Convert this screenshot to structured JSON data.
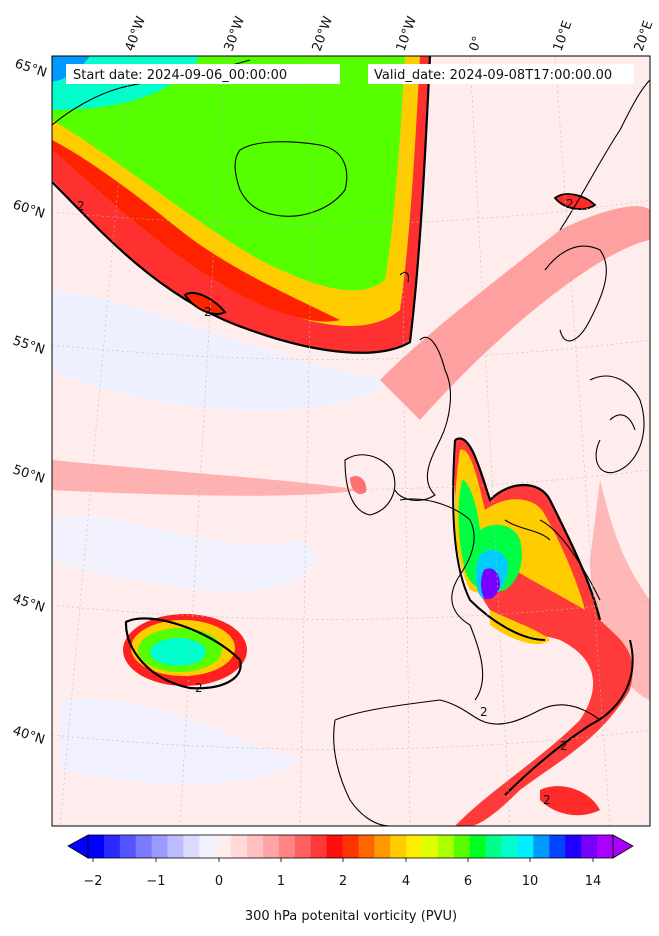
{
  "header": {
    "start_label": "Start date: 2024-09-06_00:00:00",
    "valid_label": "Valid_date: 2024-09-08T17:00:00.00"
  },
  "longitude_labels": [
    "40°W",
    "30°W",
    "20°W",
    "10°W",
    "0°",
    "10°E",
    "20°E"
  ],
  "latitude_labels": [
    "65°N",
    "60°N",
    "55°N",
    "50°N",
    "45°N",
    "40°N"
  ],
  "contour_label": "2",
  "colorbar": {
    "ticks": [
      "−2",
      "−1",
      "0",
      "1",
      "2",
      "4",
      "6",
      "10",
      "14"
    ],
    "caption": "300 hPa potenital vorticity (PVU)",
    "colors": [
      "#0000ff",
      "#2a2aff",
      "#5555ff",
      "#7a7aff",
      "#9a9aff",
      "#bcbcff",
      "#dadaff",
      "#f0f0ff",
      "#ffeeee",
      "#ffd8d8",
      "#ffc0c0",
      "#ffa4a4",
      "#ff8585",
      "#ff6060",
      "#ff3838",
      "#ff0d0d",
      "#ff3300",
      "#ff6600",
      "#ff9900",
      "#ffcc00",
      "#ffee00",
      "#ddff00",
      "#aaff00",
      "#55ff00",
      "#00ff22",
      "#00ff88",
      "#00ffcc",
      "#00eeff",
      "#0099ff",
      "#0044ff",
      "#2200ff",
      "#7700ff",
      "#aa00ff"
    ]
  }
}
